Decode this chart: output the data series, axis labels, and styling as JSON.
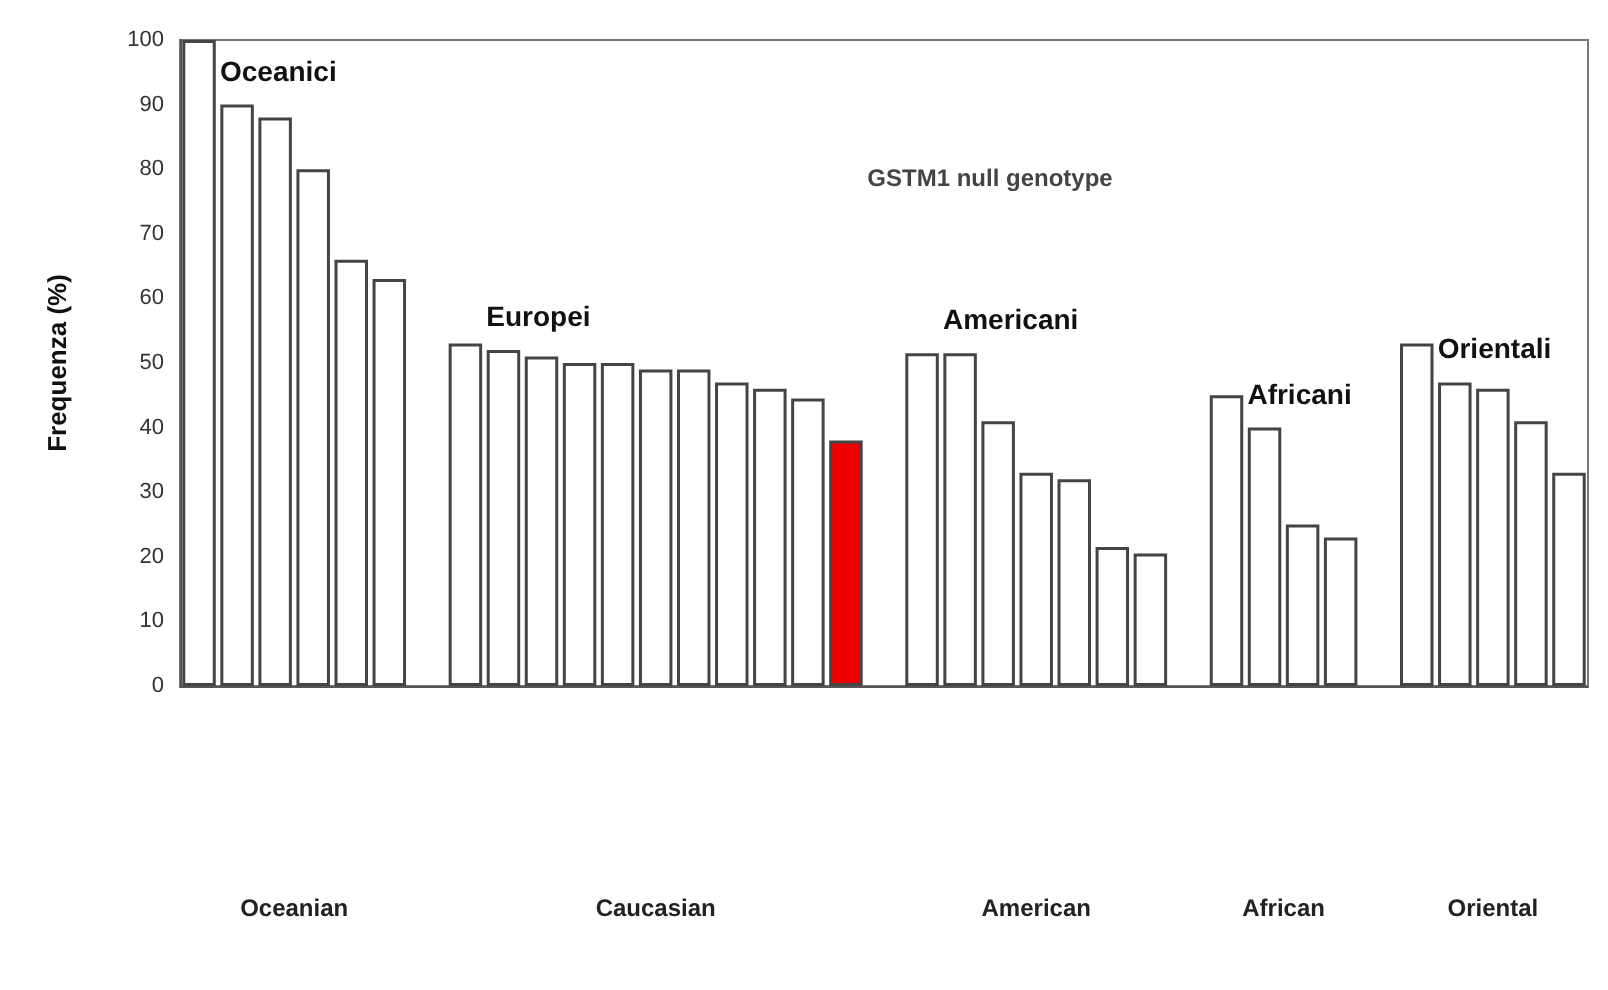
{
  "chart_data": {
    "type": "bar",
    "title": "GSTM1 null genotype",
    "ylabel": "Frequenza (%)",
    "categories": [
      null,
      null,
      null,
      null,
      null,
      null,
      null,
      null,
      null,
      null,
      null,
      null,
      null,
      null,
      null,
      null,
      null,
      null,
      null,
      null,
      null,
      null,
      null,
      null,
      null,
      null,
      null,
      null,
      null,
      null,
      null,
      null,
      null,
      null,
      null,
      null,
      null
    ],
    "values": [
      100,
      90,
      88,
      80,
      66,
      63,
      null,
      53,
      52,
      51,
      50,
      50,
      49,
      49,
      47,
      46,
      44.5,
      38,
      null,
      51.5,
      51.5,
      41,
      33,
      32,
      21.5,
      20.5,
      null,
      45,
      40,
      25,
      23,
      null,
      53,
      47,
      46,
      41,
      33
    ],
    "colors": [
      "#ffffff",
      "#ffffff",
      "#ffffff",
      "#ffffff",
      "#ffffff",
      "#ffffff",
      null,
      "#ffffff",
      "#ffffff",
      "#ffffff",
      "#ffffff",
      "#ffffff",
      "#ffffff",
      "#ffffff",
      "#ffffff",
      "#ffffff",
      "#ffffff",
      "#ee0000",
      null,
      "#ffffff",
      "#ffffff",
      "#ffffff",
      "#ffffff",
      "#ffffff",
      "#ffffff",
      "#ffffff",
      null,
      "#ffffff",
      "#ffffff",
      "#ffffff",
      "#ffffff",
      null,
      "#ffffff",
      "#ffffff",
      "#ffffff",
      "#ffffff",
      "#ffffff"
    ],
    "ylim": [
      0,
      100
    ],
    "yticks": [
      0,
      10,
      20,
      30,
      40,
      50,
      60,
      70,
      80,
      90,
      100
    ],
    "annotations": [
      "Oceanici",
      "Europei",
      "Americani",
      "Africani",
      "Orientali",
      "Oceanian",
      "Caucasian",
      "American",
      "African",
      "Oriental"
    ],
    "grid": false
  }
}
